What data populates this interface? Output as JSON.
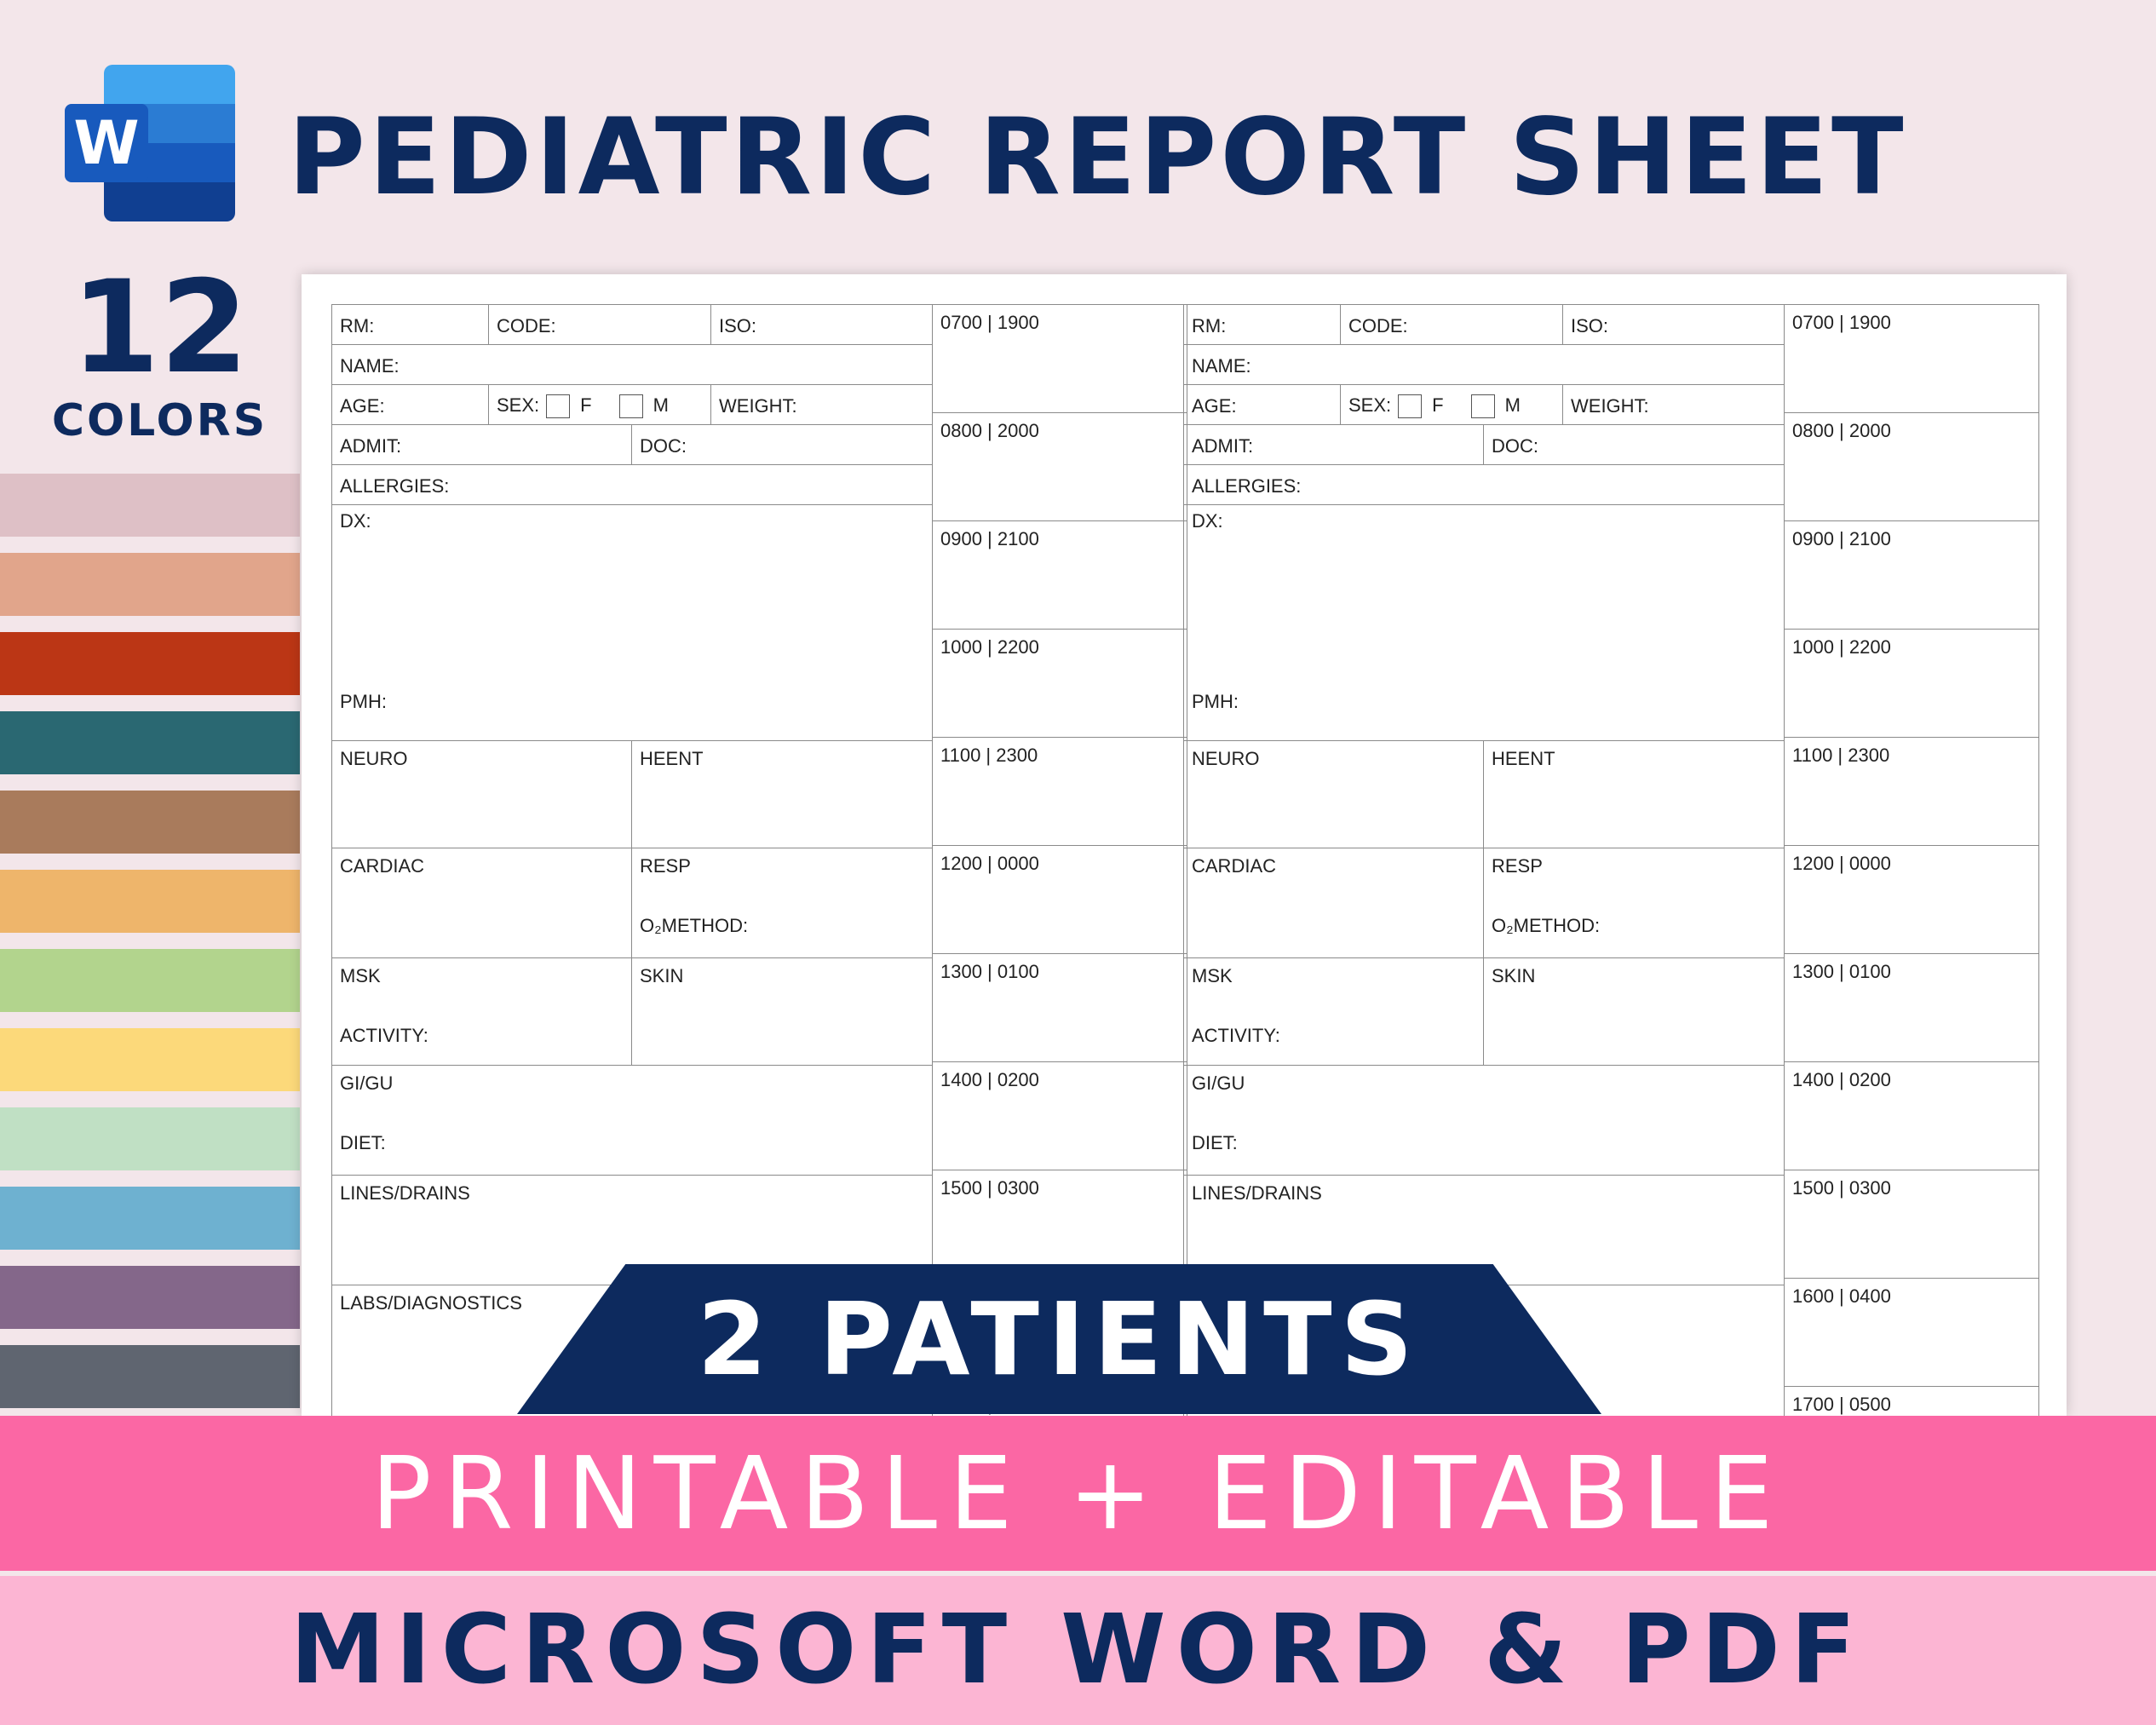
{
  "header": {
    "logo_letter": "W",
    "title": "PEDIATRIC REPORT SHEET",
    "colors_count": "12",
    "colors_label": "COLORS"
  },
  "swatches": [
    "#dec0c6",
    "#e1a58b",
    "#bb3615",
    "#2a6872",
    "#a97b5c",
    "#eeb56b",
    "#b2d48d",
    "#fcd97a",
    "#c0e0c4",
    "#6eb1d0",
    "#84678a",
    "#5f6570"
  ],
  "colors": {
    "navy": "#0d2a5e",
    "pink": "#fb67a4",
    "light_pink": "#fcb5d3",
    "background": "#f3e6ea",
    "word_blues": [
      "#41a5ee",
      "#2b7cd3",
      "#185abd",
      "#103f91"
    ]
  },
  "sheet": {
    "labels": {
      "rm": "RM:",
      "code": "CODE:",
      "iso": "ISO:",
      "name": "NAME:",
      "age": "AGE:",
      "sex": "SEX:",
      "female": "F",
      "male": "M",
      "weight": "WEIGHT:",
      "admit": "ADMIT:",
      "doc": "DOC:",
      "allergies": "ALLERGIES:",
      "dx": "DX:",
      "pmh": "PMH:",
      "neuro": "NEURO",
      "heent": "HEENT",
      "cardiac": "CARDIAC",
      "resp": "RESP",
      "o2method": "O₂METHOD:",
      "msk": "MSK",
      "activity": "ACTIVITY:",
      "skin": "SKIN",
      "gigu": "GI/GU",
      "diet": "DIET:",
      "lines_drains": "LINES/DRAINS",
      "labs": "LABS/DIAGNOSTICS"
    },
    "times": [
      "0700 | 1900",
      "0800 | 2000",
      "0900 | 2100",
      "1000 | 2200",
      "1100 | 2300",
      "1200 | 0000",
      "1300 | 0100",
      "1400 | 0200",
      "1500 | 0300",
      "1600 | 0400",
      "1700 | 0500"
    ]
  },
  "banners": {
    "patients": "2 PATIENTS",
    "printable": "PRINTABLE + EDITABLE",
    "formats": "MICROSOFT WORD & PDF"
  }
}
